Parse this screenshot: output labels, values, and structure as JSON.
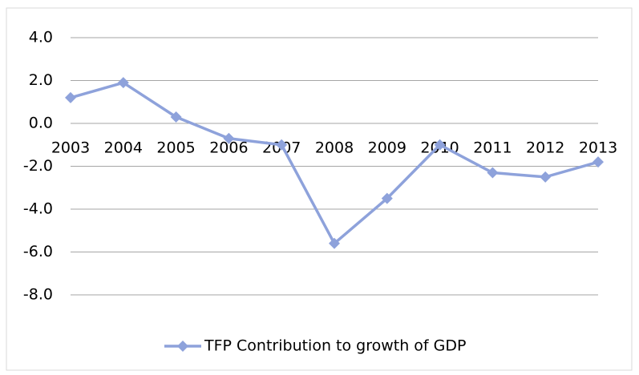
{
  "chart_data": {
    "type": "line",
    "categories": [
      "2003",
      "2004",
      "2005",
      "2006",
      "2007",
      "2008",
      "2009",
      "2010",
      "2011",
      "2012",
      "2013"
    ],
    "series": [
      {
        "name": "TFP Contribution to growth of GDP",
        "color": "#8ea2db",
        "values": [
          1.2,
          1.9,
          0.3,
          -0.7,
          -1.0,
          -5.6,
          -3.5,
          -1.0,
          -2.3,
          -2.5,
          -1.8
        ]
      }
    ],
    "ylim": [
      -8,
      4
    ],
    "yticks": [
      {
        "value": 4,
        "label": "4.0"
      },
      {
        "value": 2,
        "label": "2.0"
      },
      {
        "value": 0,
        "label": "0.0"
      },
      {
        "value": -2,
        "label": "-2.0"
      },
      {
        "value": -4,
        "label": "-4.0"
      },
      {
        "value": -6,
        "label": "-6.0"
      },
      {
        "value": -8,
        "label": "-8.0"
      }
    ],
    "grid": true,
    "legend": "bottom"
  }
}
